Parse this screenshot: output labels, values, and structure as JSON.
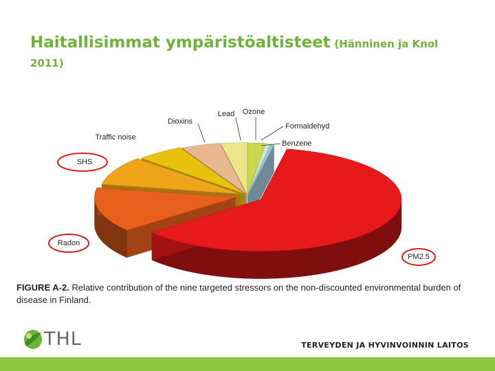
{
  "slide": {
    "title_main": "Haitallisimmat ympäristöaltisteet",
    "title_cite": "(Hänninen ja Knol",
    "title_cite2": "2011)",
    "caption_prefix": "FIGURE A-2.",
    "caption_text": "Relative contribution of the nine targeted stressors on the non-discounted environmental burden of disease in Finland.",
    "logo_text": "THL",
    "org_name": "TERVEYDEN JA HYVINVOINNIN LAITOS"
  },
  "chart_data": {
    "type": "pie",
    "title": "",
    "categories": [
      "PM2.5",
      "Radon",
      "SHS",
      "Traffic noise",
      "Dioxins",
      "Lead",
      "Ozone",
      "Formaldehyd",
      "Benzene"
    ],
    "values": [
      61,
      14,
      9,
      5.5,
      4.5,
      3,
      2,
      0.6,
      0.4
    ],
    "colors": [
      "#e8191b",
      "#e8601c",
      "#f0a41a",
      "#e8c20c",
      "#e9b890",
      "#ede58a",
      "#c9d94a",
      "#cfe3cf",
      "#9fc4d8"
    ],
    "highlighted": [
      "SHS",
      "Radon",
      "PM2.5"
    ],
    "legend": "none"
  }
}
